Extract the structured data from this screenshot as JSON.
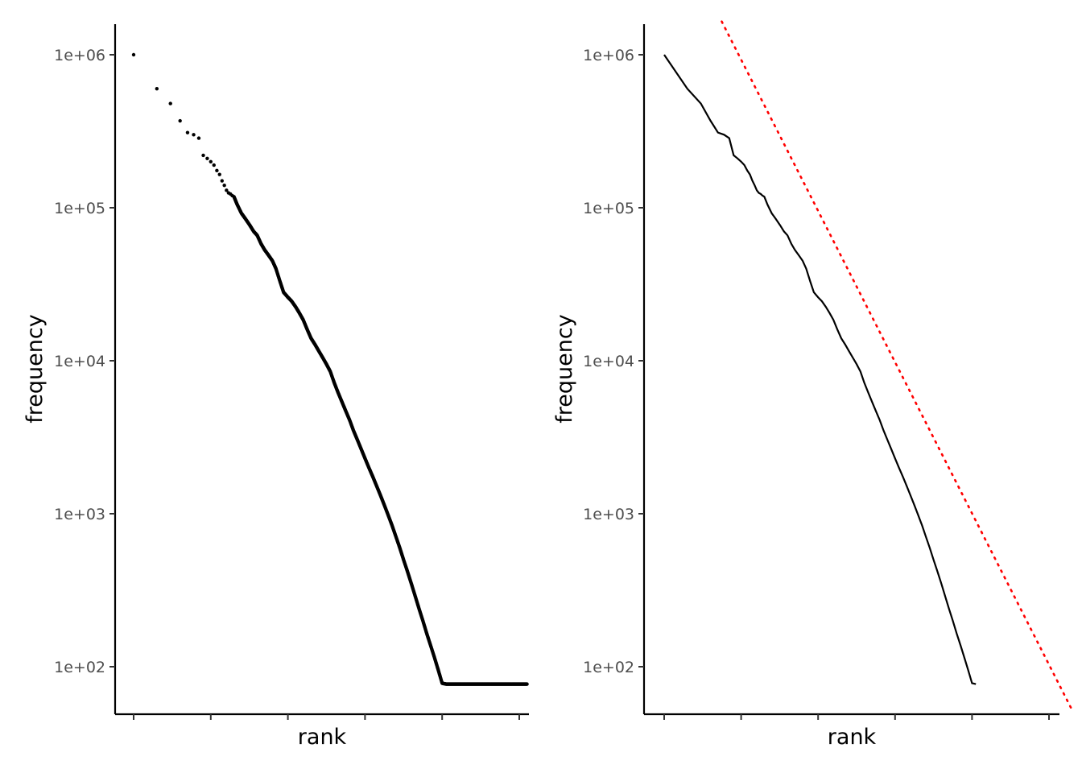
{
  "chart_data": [
    {
      "type": "scatter",
      "title": "",
      "xlabel": "rank",
      "ylabel": "frequency",
      "x_scale": "log",
      "y_scale": "log",
      "xlim": [
        0.63,
        200000
      ],
      "ylim": [
        48,
        1600000
      ],
      "x_ticks": [
        1,
        10,
        100,
        1000,
        10000,
        100000
      ],
      "x_tick_labels": [
        "",
        "",
        "",
        "",
        "",
        ""
      ],
      "y_ticks": [
        100,
        1000,
        10000,
        100000,
        1000000
      ],
      "y_tick_labels": [
        "1e+02",
        "1e+03",
        "1e+04",
        "1e+05",
        "1e+06"
      ],
      "point_color": "#000000",
      "series": [
        {
          "name": "observed",
          "x": [
            1,
            2,
            3,
            4,
            5,
            6,
            7,
            8,
            9,
            10,
            11,
            12,
            13,
            14,
            15,
            16,
            17,
            18,
            19,
            20,
            22,
            25,
            28,
            32,
            36,
            40,
            45,
            50,
            56,
            63,
            70,
            79,
            88,
            100,
            112,
            126,
            141,
            158,
            178,
            200,
            224,
            251,
            282,
            316,
            355,
            398,
            447,
            501,
            562,
            631,
            708,
            794,
            891,
            1000,
            1122,
            1259,
            1413,
            1585,
            1778,
            1995,
            2239,
            2512,
            2818,
            3162,
            3548,
            3981,
            4467,
            5012,
            5623,
            6310,
            7079,
            7943,
            8913,
            10000,
            11220,
            12589,
            14125,
            15849,
            17783,
            19953,
            22387,
            25119,
            28184,
            31623,
            35481,
            39811,
            44668,
            50119,
            56234,
            63096,
            70795,
            79433,
            89125,
            100000,
            112202,
            125893
          ],
          "y": [
            1000000,
            600000,
            480000,
            370000,
            310000,
            300000,
            285000,
            220000,
            210000,
            200000,
            190000,
            175000,
            165000,
            150000,
            140000,
            130000,
            125000,
            123000,
            120000,
            118000,
            105000,
            92000,
            85000,
            77000,
            70000,
            66000,
            58000,
            53000,
            49000,
            45000,
            40000,
            33000,
            28000,
            26000,
            24500,
            22500,
            20500,
            18500,
            16000,
            14000,
            12800,
            11600,
            10500,
            9500,
            8500,
            7200,
            6200,
            5400,
            4700,
            4100,
            3500,
            3050,
            2650,
            2300,
            2000,
            1750,
            1520,
            1320,
            1140,
            980,
            840,
            710,
            600,
            500,
            420,
            350,
            290,
            240,
            200,
            165,
            138,
            115,
            95,
            78,
            77,
            77,
            77,
            77,
            77,
            77,
            77,
            77,
            77,
            77,
            77,
            77,
            77,
            77,
            77,
            77,
            77,
            77,
            77,
            77,
            77,
            77
          ]
        }
      ]
    },
    {
      "type": "line",
      "title": "",
      "xlabel": "rank",
      "ylabel": "frequency",
      "x_scale": "log",
      "y_scale": "log",
      "xlim": [
        0.63,
        200000
      ],
      "ylim": [
        48,
        1600000
      ],
      "x_ticks": [
        1,
        10,
        100,
        1000,
        10000,
        100000
      ],
      "x_tick_labels": [
        "",
        "",
        "",
        "",
        "",
        ""
      ],
      "y_ticks": [
        100,
        1000,
        10000,
        100000,
        1000000
      ],
      "y_tick_labels": [
        "1e+02",
        "1e+03",
        "1e+04",
        "1e+05",
        "1e+06"
      ],
      "series": [
        {
          "name": "observed",
          "style": "solid",
          "color": "#000000",
          "x": [
            1,
            2,
            3,
            4,
            5,
            6,
            7,
            8,
            9,
            10,
            11,
            12,
            13,
            14,
            15,
            16,
            17,
            18,
            19,
            20,
            22,
            25,
            28,
            32,
            36,
            40,
            45,
            50,
            56,
            63,
            70,
            79,
            88,
            100,
            112,
            126,
            141,
            158,
            178,
            200,
            224,
            251,
            282,
            316,
            355,
            398,
            447,
            501,
            562,
            631,
            708,
            794,
            891,
            1000,
            1122,
            1259,
            1413,
            1585,
            1778,
            1995,
            2239,
            2512,
            2818,
            3162,
            3548,
            3981,
            4467,
            5012,
            5623,
            6310,
            7079,
            7943,
            8913,
            10000,
            11220,
            12589,
            14125,
            15849,
            17783,
            19953,
            22387,
            25119,
            28184,
            31623,
            35481,
            39811,
            44668,
            50119,
            56234,
            63096,
            70795,
            79433,
            89125,
            100000,
            112202,
            125893
          ],
          "y": [
            1000000,
            600000,
            480000,
            370000,
            310000,
            300000,
            285000,
            220000,
            210000,
            200000,
            190000,
            175000,
            165000,
            150000,
            140000,
            130000,
            125000,
            123000,
            120000,
            118000,
            105000,
            92000,
            85000,
            77000,
            70000,
            66000,
            58000,
            53000,
            49000,
            45000,
            40000,
            33000,
            28000,
            26000,
            24500,
            22500,
            20500,
            18500,
            16000,
            14000,
            12800,
            11600,
            10500,
            9500,
            8500,
            7200,
            6200,
            5400,
            4700,
            4100,
            3500,
            3050,
            2650,
            2300,
            2000,
            1750,
            1520,
            1320,
            1140,
            980,
            840,
            710,
            600,
            500,
            420,
            350,
            290,
            240,
            200,
            165,
            138,
            115,
            95,
            78,
            77,
            77,
            77,
            77,
            77,
            77,
            77,
            77,
            77,
            77,
            77,
            77,
            77,
            77,
            77,
            77,
            77,
            77,
            77,
            77,
            77,
            77
          ]
        },
        {
          "name": "power-law fit",
          "style": "dotted",
          "color": "#ff0000",
          "x": [
            5.6,
            200000
          ],
          "y": [
            1650000,
            52
          ]
        }
      ]
    }
  ]
}
